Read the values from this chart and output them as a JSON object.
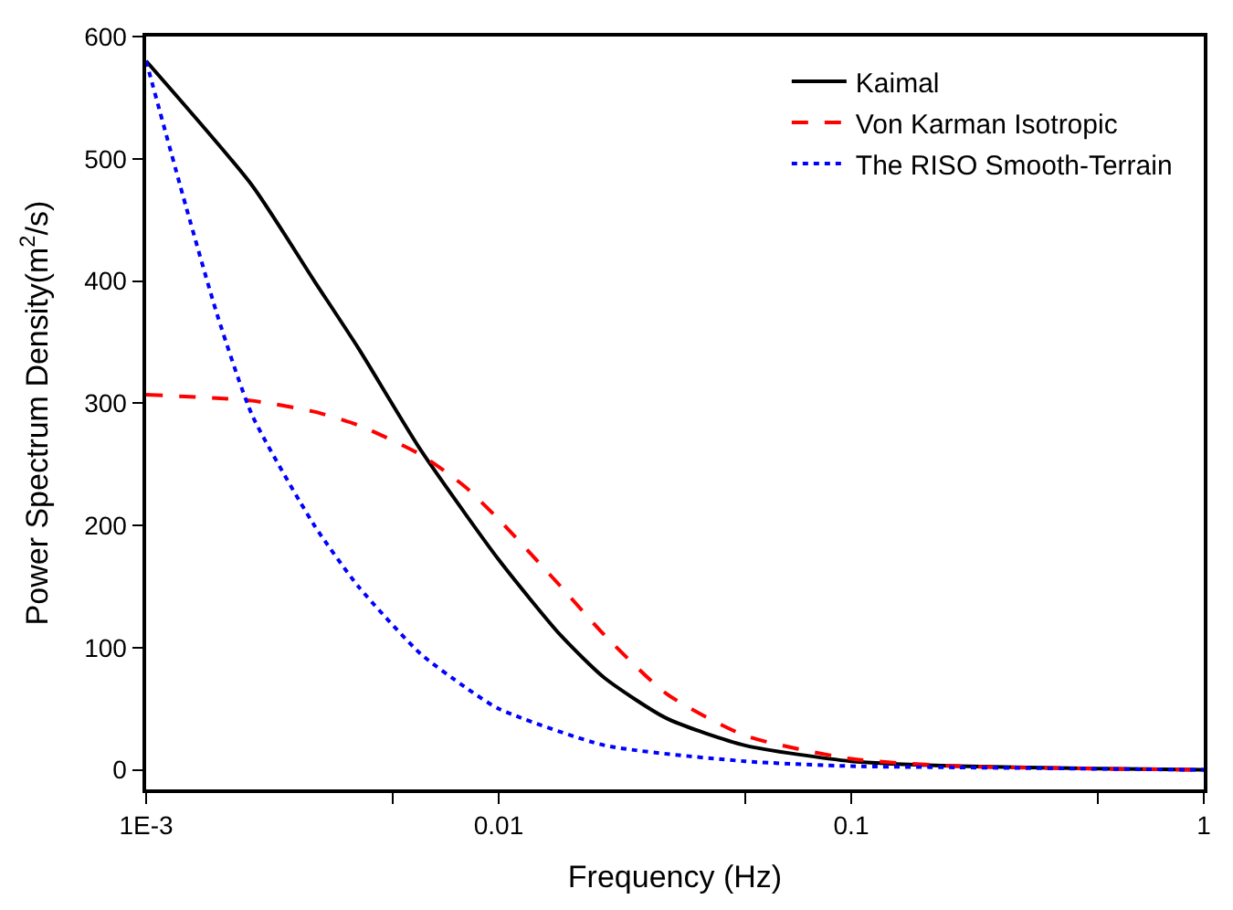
{
  "chart_data": {
    "type": "line",
    "xlabel": "Frequency (Hz)",
    "ylabel": "Power Spectrum Density(m$^{2}$/s)",
    "log": "x",
    "xlim": [
      0.001,
      1
    ],
    "xticks": [
      {
        "value": 0.001,
        "label": "1E-3"
      },
      {
        "value": 0.005,
        "label": null
      },
      0.01,
      {
        "value": 0.05,
        "label": null
      },
      0.1,
      {
        "value": 0.5,
        "label": null
      },
      1
    ],
    "ylim": [
      -16,
      600
    ],
    "yticks": [
      0,
      100,
      200,
      300,
      400,
      500,
      600
    ],
    "legend": "top right",
    "series": [
      {
        "name": "Kaimal",
        "color": "#000000",
        "line_style": "solid",
        "x": [
          0.001,
          0.002,
          0.003,
          0.004,
          0.006,
          0.01,
          0.015,
          0.02,
          0.03,
          0.05,
          0.1,
          0.2,
          0.5,
          1
        ],
        "values": [
          580,
          478,
          400,
          345,
          262,
          172,
          110,
          75,
          42,
          20,
          7,
          3,
          1,
          0
        ]
      },
      {
        "name": "Von Karman Isotropic",
        "color": "#ff0000",
        "line_style": "dashed",
        "x": [
          0.001,
          0.002,
          0.003,
          0.004,
          0.006,
          0.008,
          0.01,
          0.015,
          0.02,
          0.03,
          0.05,
          0.1,
          0.2,
          0.5,
          1
        ],
        "values": [
          307,
          302,
          293,
          282,
          258,
          232,
          205,
          150,
          110,
          62,
          28,
          9,
          3,
          1,
          0
        ]
      },
      {
        "name": "The RISO Smooth-Terrain",
        "color": "#0000ff",
        "line_style": "dotted",
        "x": [
          0.001,
          0.0013,
          0.0016,
          0.002,
          0.003,
          0.004,
          0.006,
          0.008,
          0.01,
          0.02,
          0.05,
          0.1,
          0.2,
          1
        ],
        "values": [
          580,
          460,
          370,
          290,
          200,
          150,
          95,
          68,
          50,
          20,
          7,
          3,
          2,
          0
        ]
      }
    ]
  }
}
